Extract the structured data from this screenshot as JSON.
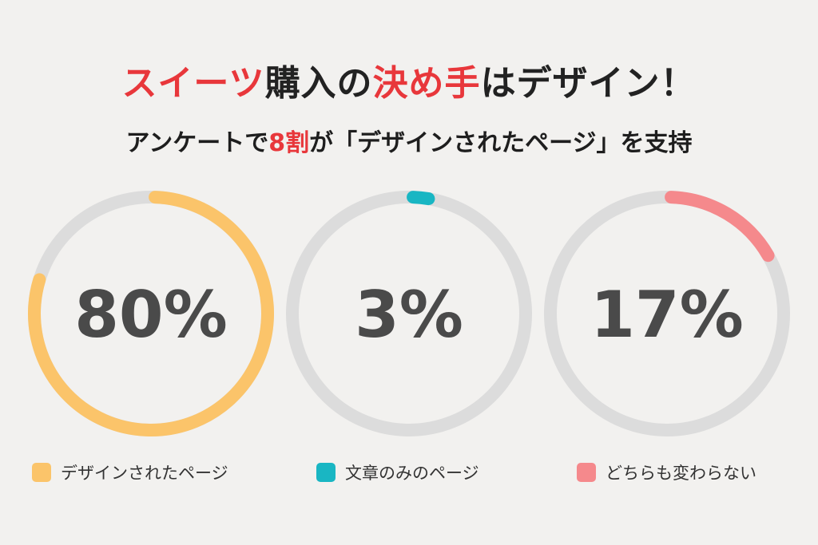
{
  "header": {
    "title_parts": [
      {
        "text": "スイーツ",
        "accent": true
      },
      {
        "text": "購入の",
        "accent": false
      },
      {
        "text": "決め手",
        "accent": true
      },
      {
        "text": "はデザイン！",
        "accent": false
      }
    ],
    "subtitle_parts": [
      {
        "text": "アンケートで",
        "accent": false
      },
      {
        "text": "8割",
        "accent": true
      },
      {
        "text": "が「デザインされたページ」を支持",
        "accent": false
      }
    ]
  },
  "colors": {
    "accent_red": "#e8373b",
    "track_gray": "#dcdcdc",
    "design_page": "#fbc46a",
    "text_only_page": "#19b6c3",
    "no_difference": "#f5898c"
  },
  "chart_data": {
    "type": "pie",
    "subtype": "donut-gauges",
    "series": [
      {
        "name": "デザインされたページ",
        "value": 80,
        "label": "80%",
        "color": "#fbc46a"
      },
      {
        "name": "文章のみのページ",
        "value": 3,
        "label": "3%",
        "color": "#19b6c3"
      },
      {
        "name": "どちらも変わらない",
        "value": 17,
        "label": "17%",
        "color": "#f5898c"
      }
    ],
    "legend_position": "bottom"
  }
}
